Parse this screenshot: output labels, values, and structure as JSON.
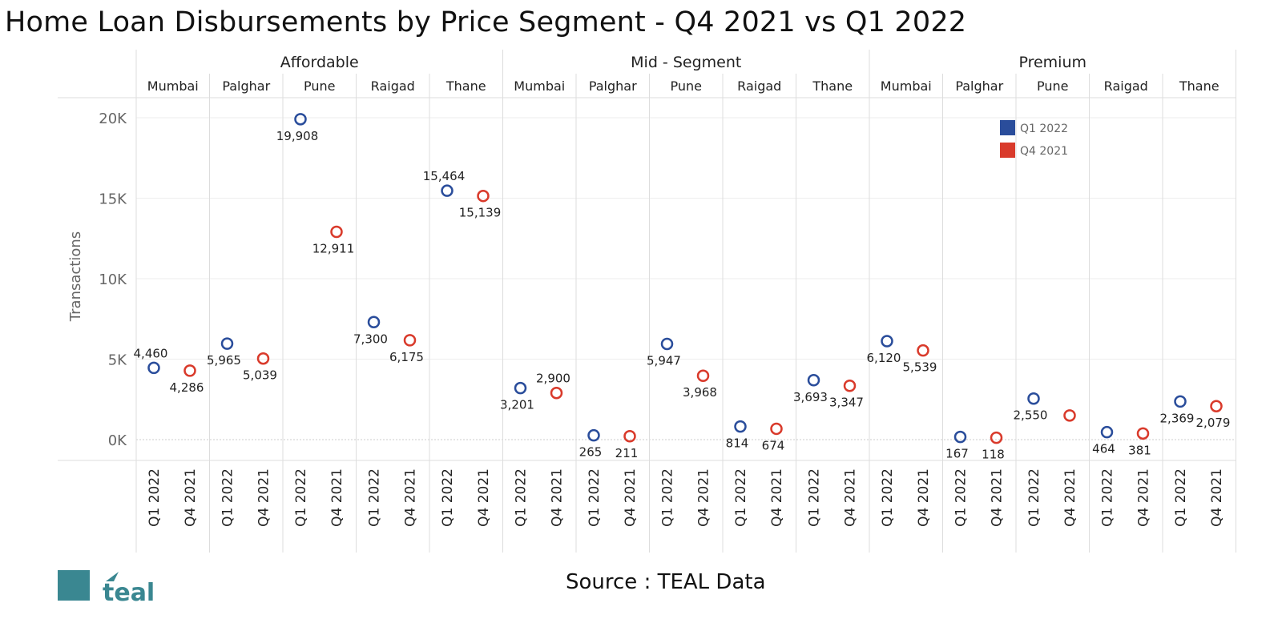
{
  "title": "Home Loan Disbursements by Price Segment - Q4 2021 vs Q1  2022",
  "source": "Source : TEAL Data",
  "logo_text": "teal",
  "colors": {
    "Q1 2022": "#2a4d9b",
    "Q4 2021": "#d93a2b",
    "logo": "#3a8791"
  },
  "chart_data": {
    "type": "scatter",
    "title": "Home Loan Disbursements by Price Segment - Q4 2021 vs Q1  2022",
    "ylabel": "Transactions",
    "xlabel": "",
    "ylim": [
      -1000,
      21000
    ],
    "yticks": [
      0,
      5000,
      10000,
      15000,
      20000
    ],
    "ytick_labels": [
      "0K",
      "5K",
      "10K",
      "15K",
      "20K"
    ],
    "grid": true,
    "legend": {
      "position": "top-right",
      "entries": [
        "Q1 2022",
        "Q4 2021"
      ]
    },
    "periods": [
      "Q1 2022",
      "Q4 2021"
    ],
    "segments": [
      {
        "name": "Affordable",
        "cities": [
          {
            "city": "Mumbai",
            "values": [
              4460,
              4286
            ],
            "labels": [
              "4,460",
              "4,286"
            ],
            "label_pos": [
              "above",
              "below"
            ]
          },
          {
            "city": "Palghar",
            "values": [
              5965,
              5039
            ],
            "labels": [
              "5,965",
              "5,039"
            ],
            "label_pos": [
              "below",
              "below"
            ]
          },
          {
            "city": "Pune",
            "values": [
              19908,
              12911
            ],
            "labels": [
              "19,908",
              "12,911"
            ],
            "label_pos": [
              "below",
              "below"
            ]
          },
          {
            "city": "Raigad",
            "values": [
              7300,
              6175
            ],
            "labels": [
              "7,300",
              "6,175"
            ],
            "label_pos": [
              "below",
              "below"
            ]
          },
          {
            "city": "Thane",
            "values": [
              15464,
              15139
            ],
            "labels": [
              "15,464",
              "15,139"
            ],
            "label_pos": [
              "above",
              "below"
            ]
          }
        ]
      },
      {
        "name": "Mid - Segment",
        "cities": [
          {
            "city": "Mumbai",
            "values": [
              3201,
              2900
            ],
            "labels": [
              "3,201",
              "2,900"
            ],
            "label_pos": [
              "below",
              "above"
            ]
          },
          {
            "city": "Palghar",
            "values": [
              265,
              211
            ],
            "labels": [
              "265",
              "211"
            ],
            "label_pos": [
              "below",
              "below"
            ]
          },
          {
            "city": "Pune",
            "values": [
              5947,
              3968
            ],
            "labels": [
              "5,947",
              "3,968"
            ],
            "label_pos": [
              "below",
              "below"
            ]
          },
          {
            "city": "Raigad",
            "values": [
              814,
              674
            ],
            "labels": [
              "814",
              "674"
            ],
            "label_pos": [
              "below",
              "below"
            ]
          },
          {
            "city": "Thane",
            "values": [
              3693,
              3347
            ],
            "labels": [
              "3,693",
              "3,347"
            ],
            "label_pos": [
              "below",
              "below"
            ]
          }
        ]
      },
      {
        "name": "Premium",
        "cities": [
          {
            "city": "Mumbai",
            "values": [
              6120,
              5539
            ],
            "labels": [
              "6,120",
              "5,539"
            ],
            "label_pos": [
              "below",
              "below"
            ]
          },
          {
            "city": "Palghar",
            "values": [
              167,
              118
            ],
            "labels": [
              "167",
              "118"
            ],
            "label_pos": [
              "below",
              "below"
            ]
          },
          {
            "city": "Pune",
            "values": [
              2550,
              1500
            ],
            "labels": [
              "2,550",
              ""
            ],
            "label_pos": [
              "below",
              "below"
            ]
          },
          {
            "city": "Raigad",
            "values": [
              464,
              381
            ],
            "labels": [
              "464",
              "381"
            ],
            "label_pos": [
              "below",
              "below"
            ]
          },
          {
            "city": "Thane",
            "values": [
              2369,
              2079
            ],
            "labels": [
              "2,369",
              "2,079"
            ],
            "label_pos": [
              "below",
              "below"
            ]
          }
        ]
      }
    ]
  }
}
